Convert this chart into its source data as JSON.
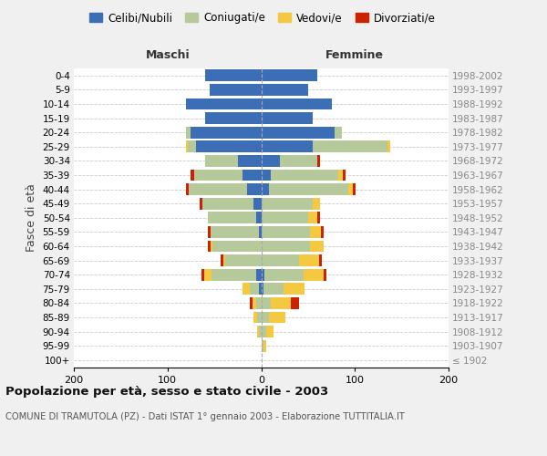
{
  "age_groups": [
    "100+",
    "95-99",
    "90-94",
    "85-89",
    "80-84",
    "75-79",
    "70-74",
    "65-69",
    "60-64",
    "55-59",
    "50-54",
    "45-49",
    "40-44",
    "35-39",
    "30-34",
    "25-29",
    "20-24",
    "15-19",
    "10-14",
    "5-9",
    "0-4"
  ],
  "birth_years": [
    "≤ 1902",
    "1903-1907",
    "1908-1912",
    "1913-1917",
    "1918-1922",
    "1923-1927",
    "1928-1932",
    "1933-1937",
    "1938-1942",
    "1943-1947",
    "1948-1952",
    "1953-1957",
    "1958-1962",
    "1963-1967",
    "1968-1972",
    "1973-1977",
    "1978-1982",
    "1983-1987",
    "1988-1992",
    "1993-1997",
    "1998-2002"
  ],
  "maschi": {
    "celibi": [
      0,
      0,
      0,
      0,
      0,
      2,
      5,
      0,
      0,
      2,
      5,
      8,
      15,
      20,
      25,
      70,
      75,
      60,
      80,
      55,
      60
    ],
    "coniugati": [
      0,
      0,
      2,
      4,
      5,
      10,
      48,
      38,
      52,
      52,
      52,
      55,
      62,
      52,
      35,
      8,
      5,
      0,
      0,
      0,
      0
    ],
    "vedovi": [
      0,
      0,
      2,
      4,
      4,
      8,
      8,
      2,
      2,
      0,
      0,
      0,
      0,
      0,
      0,
      2,
      0,
      0,
      0,
      0,
      0
    ],
    "divorziati": [
      0,
      0,
      0,
      0,
      3,
      0,
      3,
      3,
      3,
      3,
      0,
      3,
      3,
      3,
      0,
      0,
      0,
      0,
      0,
      0,
      0
    ]
  },
  "femmine": {
    "nubili": [
      0,
      0,
      0,
      0,
      0,
      2,
      3,
      0,
      0,
      0,
      0,
      0,
      8,
      10,
      20,
      55,
      78,
      55,
      75,
      50,
      60
    ],
    "coniugate": [
      0,
      2,
      5,
      8,
      10,
      22,
      42,
      40,
      52,
      52,
      50,
      55,
      85,
      72,
      40,
      80,
      8,
      0,
      0,
      0,
      0
    ],
    "vedove": [
      0,
      3,
      8,
      18,
      22,
      22,
      22,
      22,
      15,
      12,
      10,
      8,
      5,
      5,
      0,
      3,
      0,
      0,
      0,
      0,
      0
    ],
    "divorziate": [
      0,
      0,
      0,
      0,
      8,
      0,
      3,
      3,
      0,
      3,
      3,
      0,
      3,
      3,
      3,
      0,
      0,
      0,
      0,
      0,
      0
    ]
  },
  "colors": {
    "celibi": "#3b6eb5",
    "coniugati": "#b5c99a",
    "vedovi": "#f5c842",
    "divorziati": "#cc2200"
  },
  "title": "Popolazione per età, sesso e stato civile - 2003",
  "subtitle": "COMUNE DI TRAMUTOLA (PZ) - Dati ISTAT 1° gennaio 2003 - Elaborazione TUTTITALIA.IT",
  "xlabel_left": "Maschi",
  "xlabel_right": "Femmine",
  "ylabel_left": "Fasce di età",
  "xlim": 200,
  "bg_color": "#f0f0f0",
  "plot_bg": "#ffffff",
  "grid_color": "#cccccc"
}
